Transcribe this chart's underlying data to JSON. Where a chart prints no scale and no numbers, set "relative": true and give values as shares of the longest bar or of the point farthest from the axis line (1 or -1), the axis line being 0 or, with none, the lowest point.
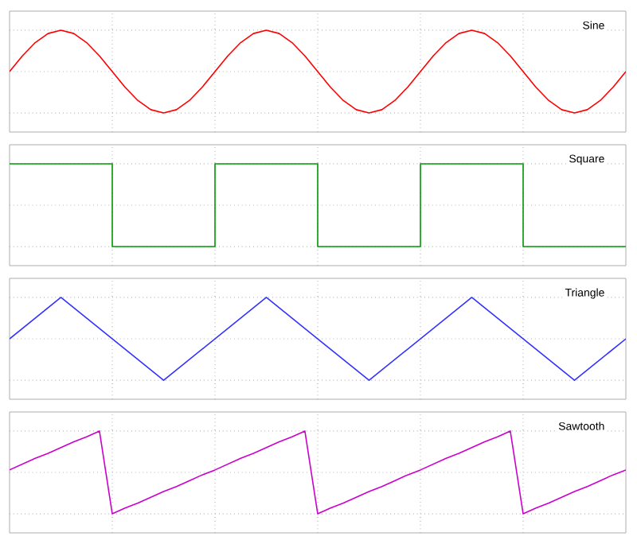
{
  "chart_data": [
    {
      "type": "line",
      "title": "Sine",
      "relative": true,
      "grid": true,
      "categories": [
        null,
        null,
        null,
        null,
        null,
        null,
        null,
        null,
        null,
        null,
        null,
        null,
        null,
        null,
        null,
        null,
        null,
        null,
        null,
        null,
        null,
        null,
        null,
        null,
        null,
        null,
        null,
        null,
        null,
        null,
        null,
        null,
        null,
        null,
        null,
        null,
        null,
        null,
        null,
        null,
        null,
        null,
        null,
        null,
        null,
        null,
        null,
        null,
        null
      ],
      "series": [
        {
          "color": "#ff0000",
          "values": [
            0.5,
            0.69,
            0.85,
            0.96,
            1,
            0.96,
            0.85,
            0.69,
            0.5,
            0.31,
            0.15,
            0.04,
            0,
            0.04,
            0.15,
            0.31,
            0.5,
            0.69,
            0.85,
            0.96,
            1,
            0.96,
            0.85,
            0.69,
            0.5,
            0.31,
            0.15,
            0.04,
            0,
            0.04,
            0.15,
            0.31,
            0.5,
            0.69,
            0.85,
            0.96,
            1,
            0.96,
            0.85,
            0.69,
            0.5,
            0.31,
            0.15,
            0.04,
            0,
            0.04,
            0.15,
            0.31,
            0.5
          ]
        }
      ]
    },
    {
      "type": "step",
      "title": "Square",
      "relative": true,
      "grid": true,
      "categories": [
        null,
        null,
        null,
        null,
        null,
        null,
        null
      ],
      "series": [
        {
          "color": "#009900",
          "values": [
            1,
            0,
            1,
            0,
            1,
            0,
            0
          ]
        }
      ]
    },
    {
      "type": "line",
      "title": "Triangle",
      "relative": true,
      "grid": true,
      "categories": [
        null,
        null,
        null,
        null,
        null,
        null,
        null,
        null,
        null,
        null,
        null,
        null,
        null
      ],
      "series": [
        {
          "color": "#3333ff",
          "values": [
            0.5,
            1,
            0.5,
            0,
            0.5,
            1,
            0.5,
            0,
            0.5,
            1,
            0.5,
            0,
            0.5
          ]
        }
      ]
    },
    {
      "type": "line",
      "title": "Sawtooth",
      "relative": true,
      "grid": true,
      "categories": [
        null,
        null,
        null,
        null,
        null,
        null,
        null,
        null,
        null,
        null,
        null,
        null,
        null,
        null,
        null,
        null,
        null,
        null,
        null,
        null,
        null,
        null,
        null,
        null,
        null,
        null,
        null,
        null,
        null,
        null,
        null,
        null,
        null,
        null,
        null,
        null,
        null,
        null,
        null,
        null,
        null,
        null,
        null,
        null,
        null,
        null,
        null,
        null,
        null
      ],
      "series": [
        {
          "color": "#cc00cc",
          "values": [
            0.53,
            0.6,
            0.67,
            0.73,
            0.8,
            0.87,
            0.93,
            1,
            0,
            0.07,
            0.13,
            0.2,
            0.27,
            0.33,
            0.4,
            0.47,
            0.53,
            0.6,
            0.67,
            0.73,
            0.8,
            0.87,
            0.93,
            1,
            0,
            0.07,
            0.13,
            0.2,
            0.27,
            0.33,
            0.4,
            0.47,
            0.53,
            0.6,
            0.67,
            0.73,
            0.8,
            0.87,
            0.93,
            1,
            0,
            0.07,
            0.13,
            0.2,
            0.27,
            0.33,
            0.4,
            0.47,
            0.53
          ]
        }
      ]
    }
  ]
}
